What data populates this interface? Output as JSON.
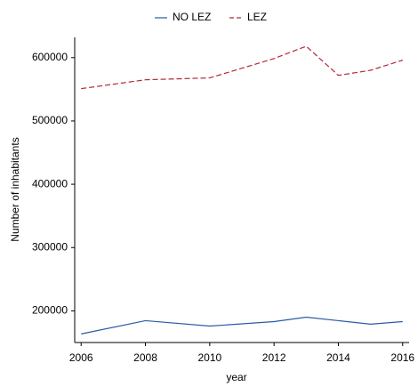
{
  "chart_data": {
    "type": "line",
    "x_label": "year",
    "y_label": "Number of inhabitants",
    "x": [
      2006,
      2008,
      2010,
      2012,
      2013,
      2014,
      2015,
      2016
    ],
    "series": [
      {
        "name": "NO LEZ",
        "color": "#2a5ba8",
        "dash": false,
        "values": [
          163500,
          184500,
          176000,
          183000,
          190000,
          184500,
          179000,
          183000
        ]
      },
      {
        "name": "LEZ",
        "color": "#b5273a",
        "dash": true,
        "values": [
          551000,
          565000,
          568000,
          598500,
          618000,
          572000,
          580000,
          596000
        ]
      }
    ],
    "xlim": [
      2005.8,
      2016.2
    ],
    "xticks": [
      2006,
      2008,
      2010,
      2012,
      2014,
      2016
    ],
    "ylim": [
      150000,
      632000
    ],
    "yticks": [
      200000,
      300000,
      400000,
      500000,
      600000
    ],
    "grid": false,
    "legend": "top"
  }
}
